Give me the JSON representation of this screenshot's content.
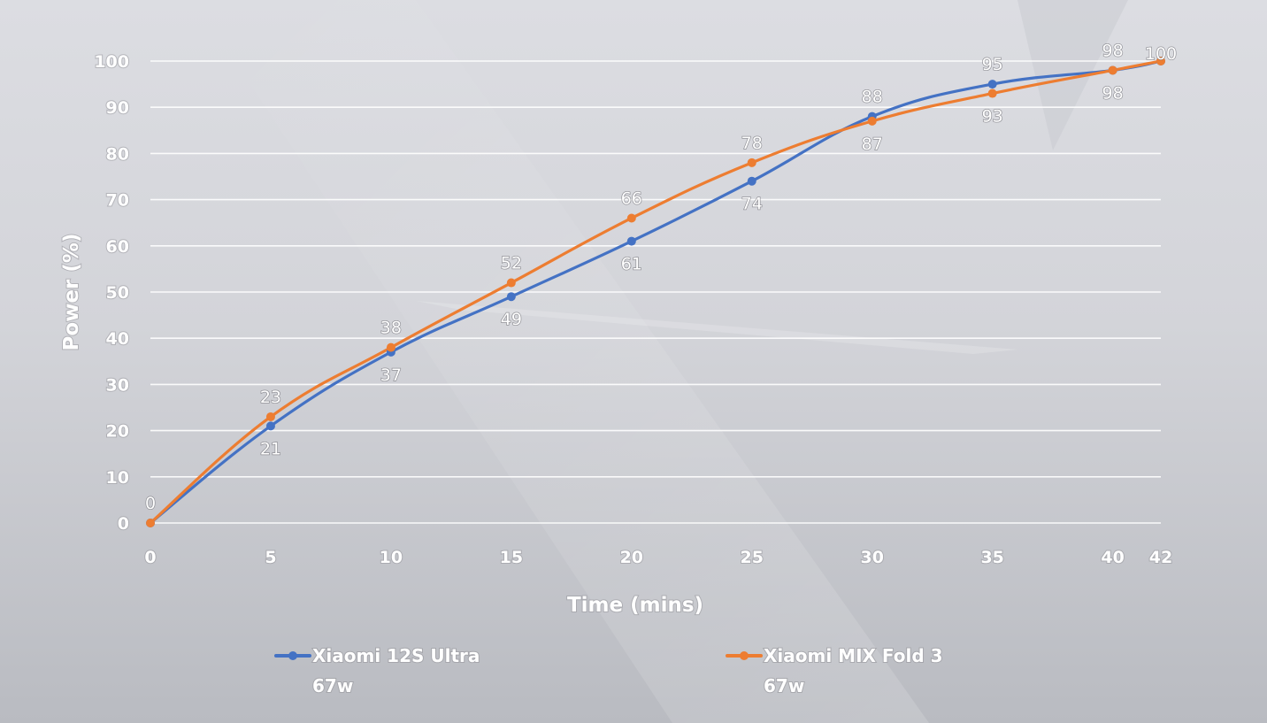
{
  "chart_data": {
    "type": "line",
    "xlabel": "Time (mins)",
    "ylabel": "Power (%)",
    "x": [
      0,
      5,
      10,
      15,
      20,
      25,
      30,
      35,
      40,
      42
    ],
    "x_tick_labels": [
      "0",
      "5",
      "10",
      "15",
      "20",
      "25",
      "30",
      "35",
      "40",
      "42"
    ],
    "ylim": [
      0,
      100
    ],
    "y_ticks": [
      0,
      10,
      20,
      30,
      40,
      50,
      60,
      70,
      80,
      90,
      100
    ],
    "grid": true,
    "legend_position": "bottom",
    "series": [
      {
        "name": "Xiaomi 12S Ultra",
        "name_line2": "67w",
        "color": "#4472c4",
        "values": [
          0,
          21,
          37,
          49,
          61,
          74,
          88,
          95,
          98,
          100
        ],
        "data_labels": [
          "0",
          "21",
          "37",
          "49",
          "61",
          "74",
          "88",
          "95",
          "98",
          "100"
        ]
      },
      {
        "name": "Xiaomi MIX Fold 3",
        "name_line2": "67w",
        "color": "#ed7d31",
        "values": [
          0,
          23,
          38,
          52,
          66,
          78,
          87,
          93,
          98,
          100
        ],
        "data_labels": [
          "",
          "23",
          "38",
          "52",
          "66",
          "78",
          "87",
          "93",
          "98",
          ""
        ]
      }
    ]
  }
}
